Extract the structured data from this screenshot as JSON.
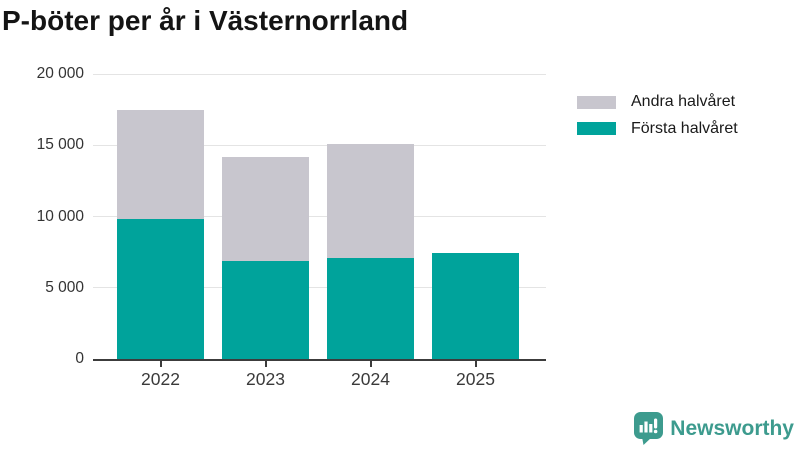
{
  "title": "P-böter per år i Västernorrland",
  "chart_data": {
    "type": "bar",
    "stacked": true,
    "title": "P-böter per år i Västernorrland",
    "categories": [
      "2022",
      "2023",
      "2024",
      "2025"
    ],
    "series": [
      {
        "id": "first-half",
        "name": "Första halvåret",
        "color": "#00a39b",
        "values": [
          9800,
          6900,
          7100,
          7450
        ]
      },
      {
        "id": "second-half",
        "name": "Andra halvåret",
        "color": "#c8c6ce",
        "values": [
          7700,
          7300,
          8000,
          0
        ]
      }
    ],
    "totals": [
      17500,
      14200,
      15100,
      7450
    ],
    "xlabel": "",
    "ylabel": "",
    "ylim": [
      0,
      20000
    ],
    "yticks": [
      0,
      5000,
      10000,
      15000,
      20000
    ],
    "ytick_labels": [
      "0",
      "5 000",
      "10 000",
      "15 000",
      "20 000"
    ],
    "grid": true,
    "legend_position": "top-right"
  },
  "legend": {
    "items": [
      {
        "label": "Andra halvåret",
        "color": "#c8c6ce"
      },
      {
        "label": "Första halvåret",
        "color": "#00a39b"
      }
    ]
  },
  "branding": {
    "logo_text": "Newsworthy",
    "logo_icon": "bar-chart-speech-bubble-icon",
    "logo_color": "#3d9b8e"
  },
  "colors": {
    "first_half_bar": "#00a39b",
    "second_half_bar": "#c8c6ce",
    "gridline": "#e4e4e4",
    "axis": "#3c3c3c",
    "title_text": "#141414",
    "tick_label_text": "#3a3a3a",
    "legend_text": "#1a1a1a"
  }
}
